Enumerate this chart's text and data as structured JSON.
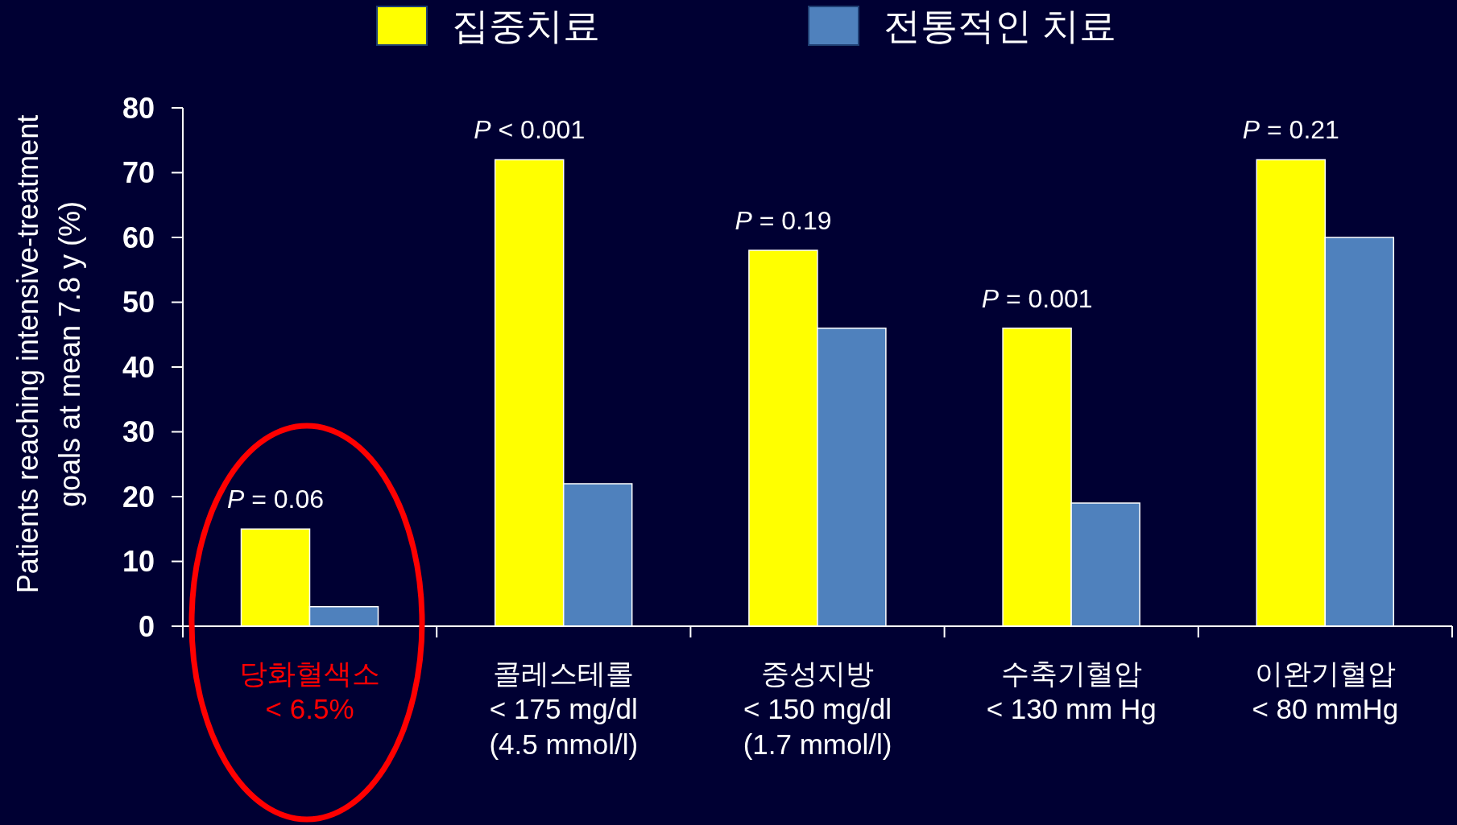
{
  "chart_data": {
    "type": "bar",
    "categories": [
      "당화혈색소\n< 6.5%",
      "콜레스테롤\n< 175 mg/dl\n(4.5 mmol/l)",
      "중성지방\n< 150 mg/dl\n(1.7 mmol/l)",
      "수축기혈압\n< 130 mm Hg",
      "이완기혈압\n< 80 mmHg"
    ],
    "series": [
      {
        "name": "집중치료",
        "color": "#ffff00",
        "values": [
          15,
          72,
          58,
          46,
          72
        ]
      },
      {
        "name": "전통적인 치료",
        "color": "#4f81bd",
        "values": [
          3,
          22,
          46,
          19,
          60
        ]
      }
    ],
    "ylabel": "Patients reaching intensive-treatment\ngoals at mean 7.8 y (%)",
    "ylim": [
      0,
      80
    ],
    "yticks": [
      0,
      10,
      20,
      30,
      40,
      50,
      60,
      70,
      80
    ],
    "legend": "top",
    "annotations": [
      {
        "text": "P = 0.06",
        "x": "당화혈색소\n< 6.5%",
        "y": 15
      },
      {
        "text": "P < 0.001",
        "x": "콜레스테롤\n< 175 mg/dl\n(4.5 mmol/l)",
        "y": 72
      },
      {
        "text": "P = 0.19",
        "x": "중성지방\n< 150 mg/dl\n(1.7 mmol/l)",
        "y": 58
      },
      {
        "text": "P = 0.001",
        "x": "수축기혈압\n< 130 mm Hg",
        "y": 46
      },
      {
        "text": "P = 0.21",
        "x": "이완기혈압\n< 80 mmHg",
        "y": 72
      }
    ]
  }
}
